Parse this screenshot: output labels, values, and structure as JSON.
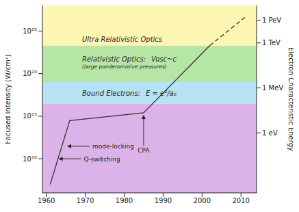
{
  "chart_data": {
    "type": "line",
    "ylabel": "Focused Intensity (W/cm²)",
    "y2label": "Electron Characteristic Energy",
    "log": "y",
    "grid": false,
    "xlim": [
      1959,
      2014
    ],
    "xticks": [
      1960,
      1970,
      1980,
      1990,
      2000,
      2010
    ],
    "ylim": [
      1000000.0,
      1e+28
    ],
    "yticks": [
      {
        "value": 10000000000.0,
        "label": "10¹⁰"
      },
      {
        "value": 1000000000000000.0,
        "label": "10¹⁵"
      },
      {
        "value": 1e+20,
        "label": "10²⁰"
      },
      {
        "value": 1e+25,
        "label": "10²⁵"
      }
    ],
    "y2lim": [
      1e-08,
      1e+17
    ],
    "y2ticks": [
      {
        "value": 1,
        "label": "1 eV"
      },
      {
        "value": 1000000.0,
        "label": "1 MeV"
      },
      {
        "value": 1000000000000.0,
        "label": "1 TeV"
      },
      {
        "value": 1000000000000000.0,
        "label": "1 PeV"
      }
    ],
    "series": [
      {
        "color": "#333333",
        "line_style": "solid",
        "x": [
          1961,
          1966,
          1985,
          2002
        ],
        "values": [
          10000000.0,
          300000000000000.0,
          2500000000000000.0,
          2e+23
        ]
      },
      {
        "color": "#333333",
        "line_style": "dashed",
        "x": [
          2002,
          2011
        ],
        "values": [
          2e+23,
          4e+26
        ]
      }
    ],
    "regions": [
      {
        "from": 1000000.0,
        "to": 3e+16,
        "color": "#dcb3e8"
      },
      {
        "label": "Bound Electrons:",
        "formula": "E = e²/a₀",
        "from": 3e+16,
        "to": 1e+19,
        "color": "#b5e3f3"
      },
      {
        "label": "Relativistic Optics:",
        "formula": "Vosc~c",
        "note": "(large ponderomotive pressures)",
        "from": 1e+19,
        "to": 2e+23,
        "color": "#b6e6a6"
      },
      {
        "label": "Ultra Relativistic Optics",
        "from": 2e+23,
        "to": 1e+28,
        "color": "#fdf6b2"
      }
    ],
    "annotations": [
      {
        "text": "mode-locking",
        "x": 1964.8,
        "y": 300000000000.0
      },
      {
        "text": "Q-switching",
        "x": 1962.6,
        "y": 10000000000.0
      },
      {
        "text": "CPA",
        "x": 1985,
        "y": 2500000000000000.0
      }
    ]
  }
}
